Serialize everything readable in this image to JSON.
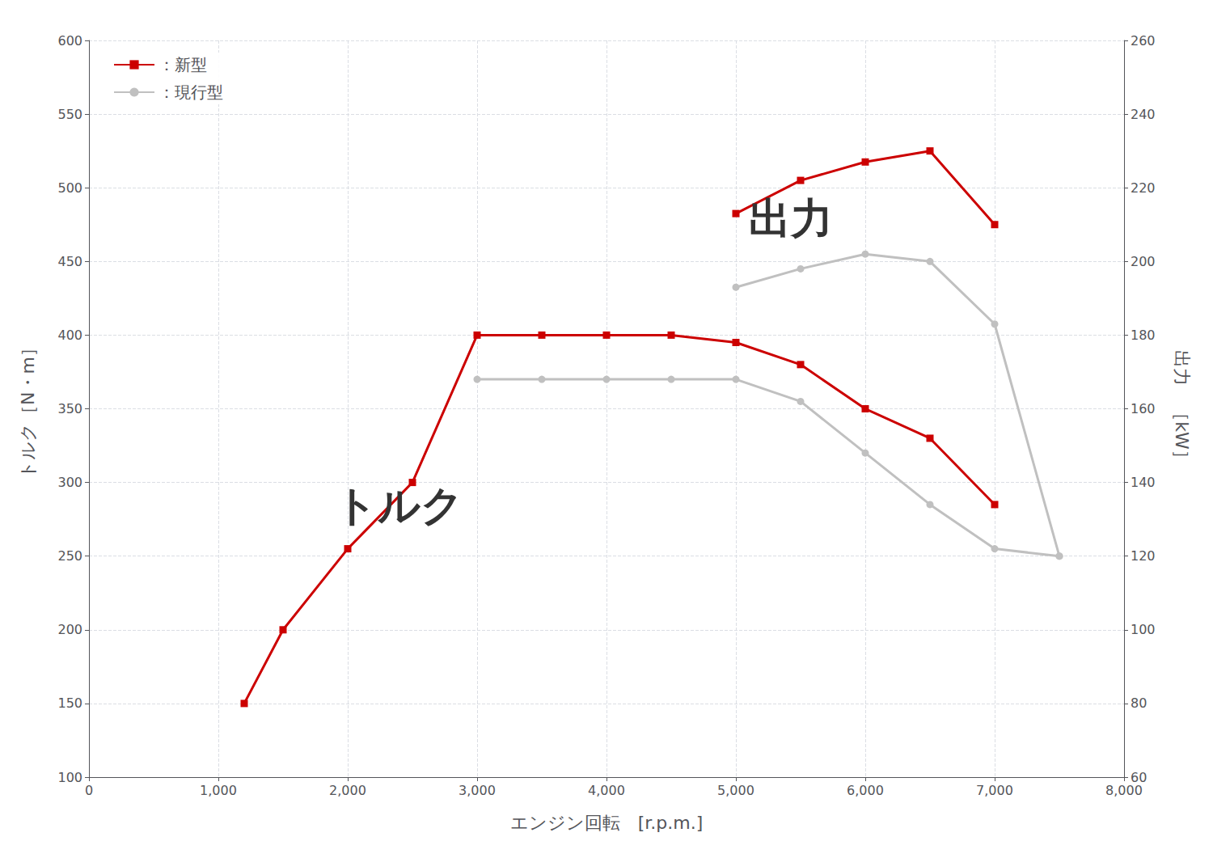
{
  "chart_data": {
    "type": "line",
    "xlabel": "エンジン回転　[r.p.m.]",
    "ylabel": "トルク［N・m］",
    "y2label": "出力　［kW］",
    "xlim": [
      0,
      8000
    ],
    "xticks": [
      0,
      1000,
      2000,
      3000,
      4000,
      5000,
      6000,
      7000,
      8000
    ],
    "ylim": [
      100,
      600
    ],
    "yticks": [
      100,
      150,
      200,
      250,
      300,
      350,
      400,
      450,
      500,
      550,
      600
    ],
    "y2lim": [
      60,
      260
    ],
    "y2ticks": [
      60,
      80,
      100,
      120,
      140,
      160,
      180,
      200,
      220,
      240,
      260
    ],
    "grid": true,
    "legend": "upper left",
    "series": [
      {
        "name": "：新型",
        "color": "#cc0000",
        "marker": "square",
        "x": [
          1200,
          1500,
          2000,
          2500,
          3000,
          3500,
          4000,
          4500,
          5000,
          5500,
          6000,
          6500,
          7000
        ],
        "values": [
          150,
          200,
          255,
          300,
          400,
          400,
          400,
          400,
          395,
          380,
          350,
          330,
          285
        ]
      },
      {
        "name": "：現行型",
        "color": "#c0c0c0",
        "marker": "circle",
        "x": [
          3000,
          3500,
          4000,
          4500,
          5000,
          5500,
          6000,
          6500,
          7000,
          7500
        ],
        "values": [
          370,
          370,
          370,
          370,
          370,
          355,
          320,
          285,
          255,
          250
        ]
      },
      {
        "name": "：新型",
        "color": "#cc0000",
        "marker": "square",
        "axis": "y2",
        "x": [
          5000,
          5500,
          6000,
          6500,
          7000
        ],
        "values": [
          213,
          222,
          227,
          230,
          210
        ]
      },
      {
        "name": "：現行型",
        "color": "#c0c0c0",
        "marker": "circle",
        "axis": "y2",
        "x": [
          5000,
          5500,
          6000,
          6500,
          7000,
          7500
        ],
        "values": [
          193,
          198,
          202,
          200,
          183,
          120
        ]
      }
    ],
    "annotations": [
      {
        "text": "トルク",
        "x": 1900,
        "y": 270
      },
      {
        "text": "出力",
        "x": 5100,
        "y": 465
      }
    ]
  }
}
